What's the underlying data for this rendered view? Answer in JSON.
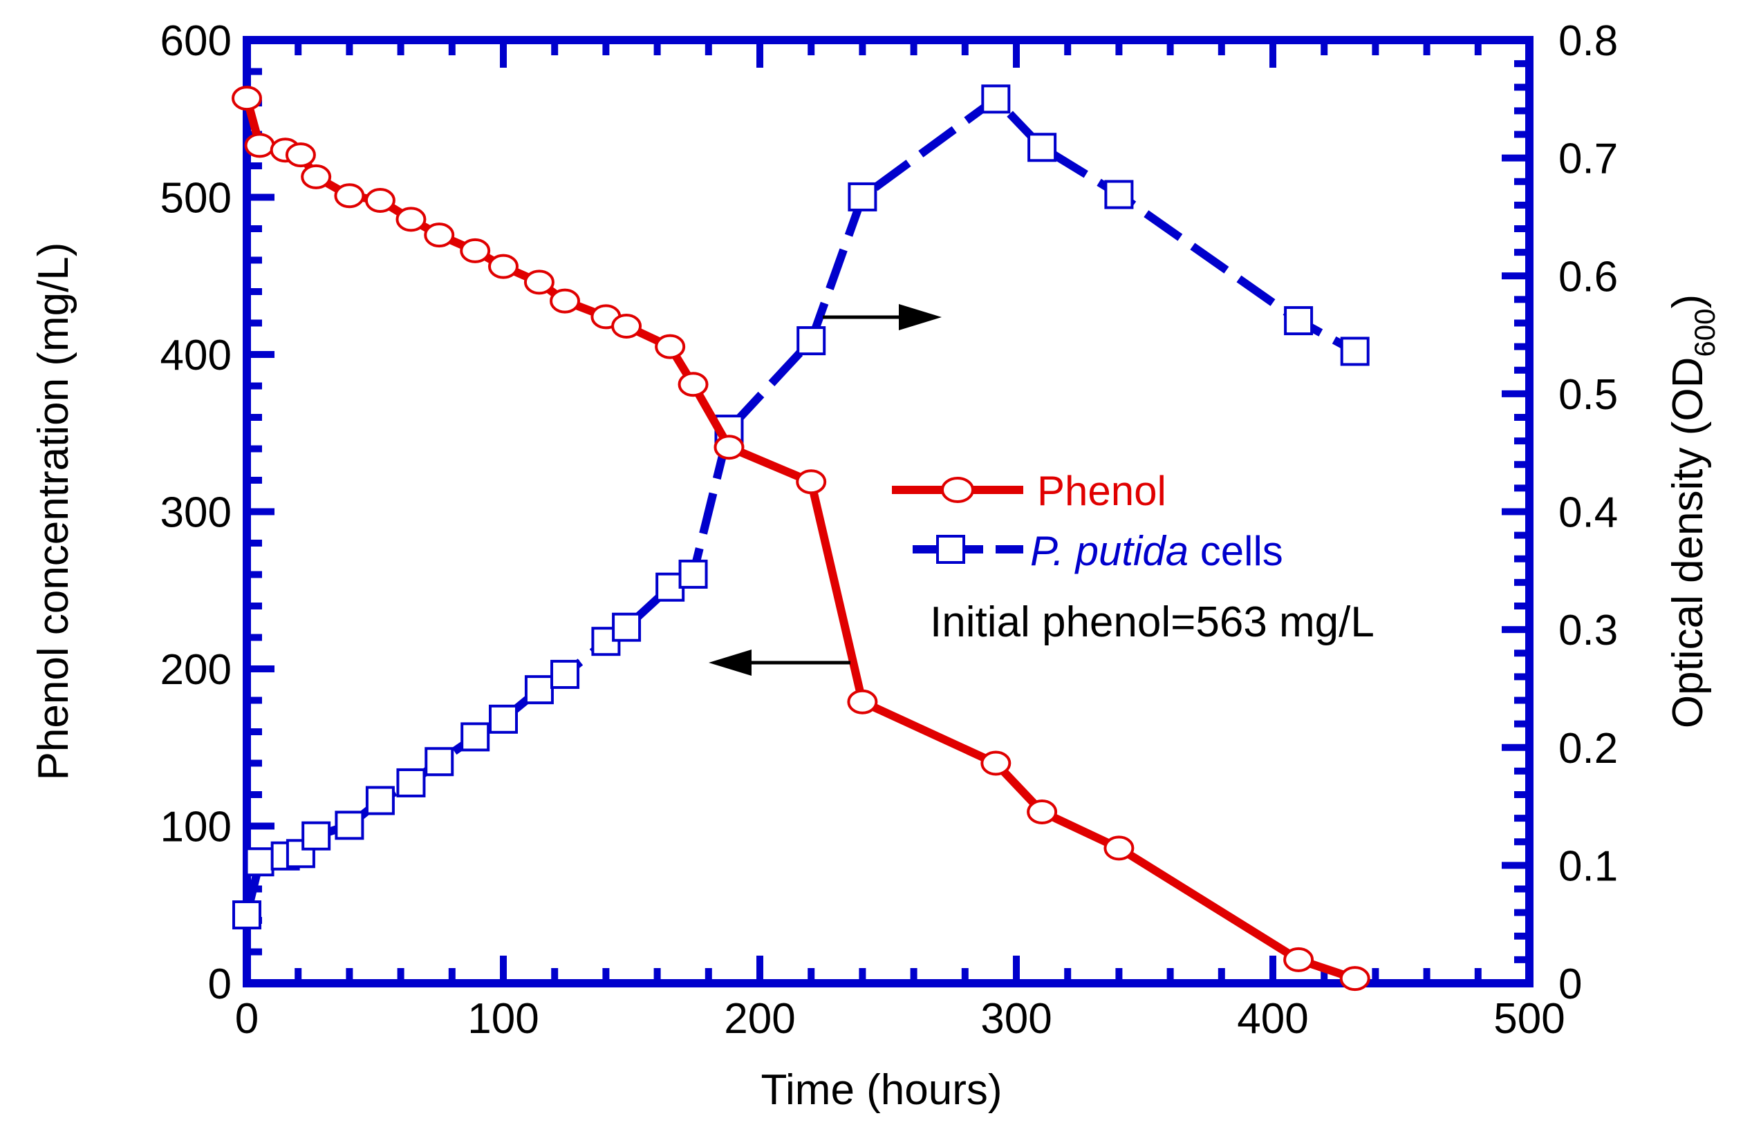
{
  "chart_data": {
    "type": "line",
    "title": "",
    "xlabel": "Time (hours)",
    "ylabel": "Phenol concentration (mg/L)",
    "y2label_main": "Optical density (OD",
    "y2label_sub": "600",
    "y2label_end": ")",
    "xlim": [
      0,
      500
    ],
    "ylim": [
      0,
      600
    ],
    "y2lim": [
      0,
      0.8
    ],
    "xticks": [
      0,
      100,
      200,
      300,
      400,
      500
    ],
    "xtick_labels": [
      "0",
      "100",
      "200",
      "300",
      "400",
      "500"
    ],
    "yticks": [
      0,
      100,
      200,
      300,
      400,
      500,
      600
    ],
    "ytick_labels": [
      "0",
      "100",
      "200",
      "300",
      "400",
      "500",
      "600"
    ],
    "y2ticks": [
      0,
      0.1,
      0.2,
      0.3,
      0.4,
      0.5,
      0.6,
      0.7,
      0.8
    ],
    "y2tick_labels": [
      "0",
      "0.1",
      "0.2",
      "0.3",
      "0.4",
      "0.5",
      "0.6",
      "0.7",
      "0.8"
    ],
    "grid": false,
    "legend_position": "center-right",
    "series": [
      {
        "name": "Phenol",
        "axis": "left",
        "color": "#e00000",
        "marker": "circle",
        "line": "solid",
        "x": [
          0,
          5,
          15,
          21,
          27,
          40,
          52,
          64,
          75,
          89,
          100,
          114,
          124,
          140,
          148,
          165,
          174,
          188,
          220,
          240,
          292,
          310,
          340,
          410,
          432
        ],
        "y": [
          563,
          533,
          530,
          527,
          513,
          501,
          498,
          486,
          476,
          466,
          456,
          446,
          434,
          424,
          418,
          405,
          381,
          341,
          319,
          179,
          140,
          109,
          86,
          15,
          3
        ]
      },
      {
        "name": "P. putida cells",
        "name_italic": "P. putida",
        "name_rest": " cells",
        "axis": "right",
        "color": "#0000cc",
        "marker": "square",
        "line": "dashed",
        "x": [
          0,
          5,
          15,
          21,
          27,
          40,
          52,
          64,
          75,
          89,
          100,
          114,
          124,
          140,
          148,
          165,
          174,
          188,
          220,
          240,
          292,
          310,
          340,
          410,
          432
        ],
        "y": [
          0.058,
          0.103,
          0.108,
          0.11,
          0.125,
          0.134,
          0.155,
          0.17,
          0.188,
          0.209,
          0.224,
          0.249,
          0.262,
          0.29,
          0.302,
          0.336,
          0.347,
          0.47,
          0.545,
          0.667,
          0.75,
          0.709,
          0.669,
          0.562,
          0.536
        ]
      }
    ],
    "annotation": "Initial phenol=563 mg/L"
  },
  "colors": {
    "frame": "#0000cc",
    "phenol": "#e00000",
    "cells": "#0000cc",
    "arrow": "#000000"
  }
}
